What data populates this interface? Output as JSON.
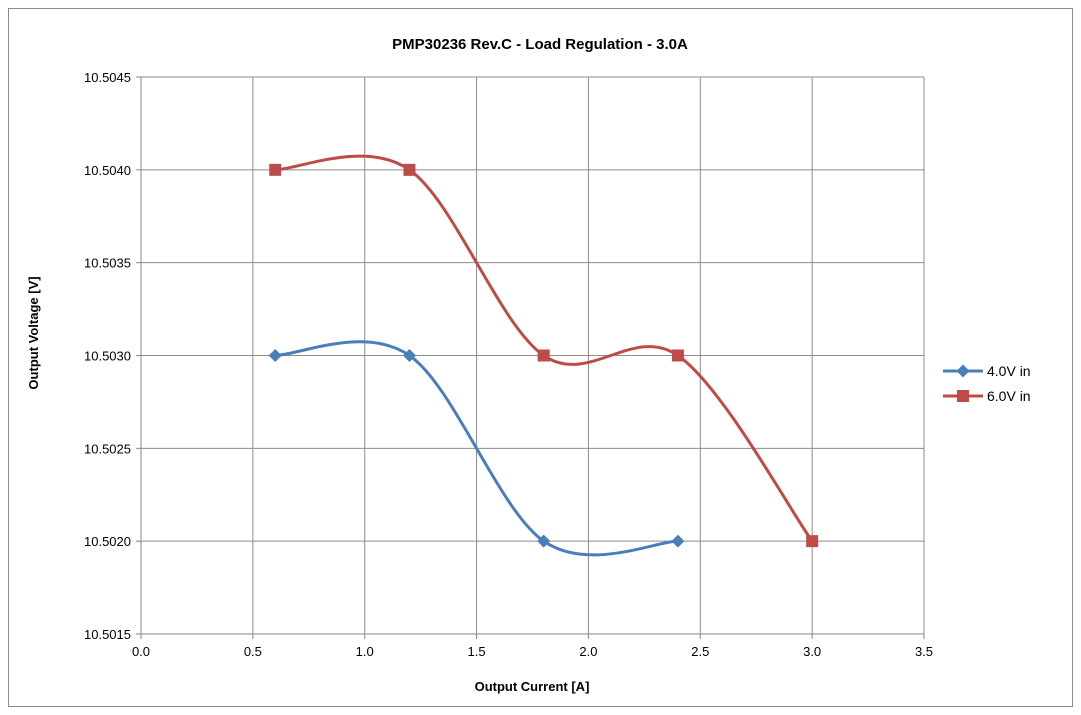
{
  "chart_data": {
    "type": "line",
    "title": "PMP30236 Rev.C - Load Regulation - 3.0A",
    "xlabel": "Output Current [A]",
    "ylabel": "Output Voltage [V]",
    "xlim": [
      0,
      3.5
    ],
    "ylim": [
      10.5015,
      10.5045
    ],
    "x_ticks": [
      "0.0",
      "0.5",
      "1.0",
      "1.5",
      "2.0",
      "2.5",
      "3.0",
      "3.5"
    ],
    "y_ticks": [
      "10.5015",
      "10.5020",
      "10.5025",
      "10.5030",
      "10.5035",
      "10.5040",
      "10.5045"
    ],
    "grid": true,
    "legend_position": "right",
    "series": [
      {
        "name": "4.0V in",
        "color": "#4a7ebb",
        "marker": "diamond",
        "x": [
          0.6,
          1.2,
          1.8,
          2.4
        ],
        "y": [
          10.503,
          10.503,
          10.502,
          10.502
        ]
      },
      {
        "name": "6.0V in",
        "color": "#be4b48",
        "marker": "square",
        "x": [
          0.6,
          1.2,
          1.8,
          2.4,
          3.0
        ],
        "y": [
          10.504,
          10.504,
          10.503,
          10.503,
          10.502
        ]
      }
    ]
  }
}
